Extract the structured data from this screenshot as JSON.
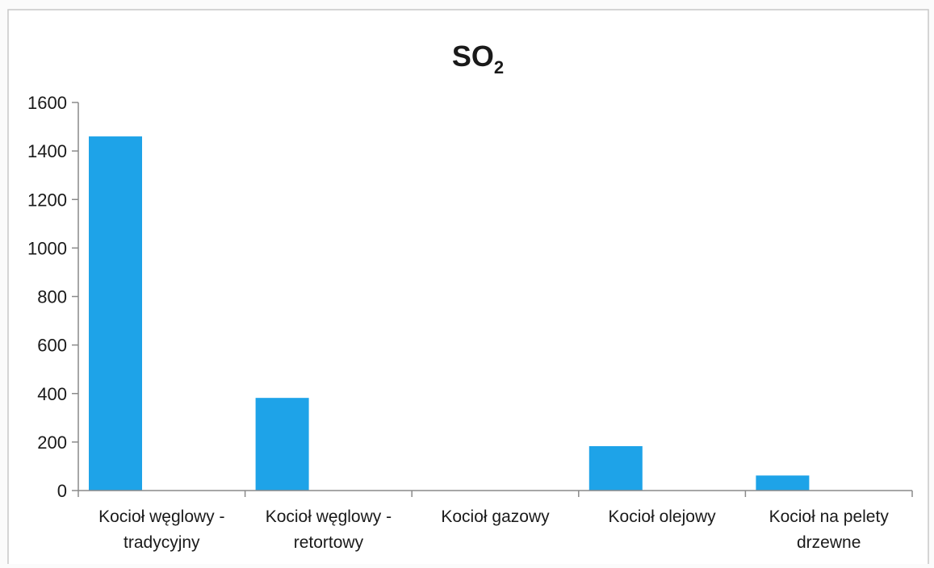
{
  "chart_data": {
    "type": "bar",
    "title": {
      "main": "SO",
      "subscript": "2"
    },
    "categories": [
      [
        "Kocioł węglowy -",
        "tradycyjny"
      ],
      [
        "Kocioł węglowy -",
        "retortowy"
      ],
      [
        "Kocioł gazowy"
      ],
      [
        "Kocioł olejowy"
      ],
      [
        "Kocioł na pelety",
        "drzewne"
      ]
    ],
    "values": [
      1460,
      382,
      0,
      183,
      62
    ],
    "yticks": [
      "0",
      "200",
      "400",
      "600",
      "800",
      "1000",
      "1200",
      "1400",
      "1600"
    ],
    "ylim": [
      0,
      1600
    ],
    "xlabel": "",
    "ylabel": "",
    "legend": "none",
    "grid": false,
    "colors": {
      "bar": "#1ea3e8",
      "axis": "#8a8a8a",
      "frame": "#c8c8c8"
    }
  }
}
